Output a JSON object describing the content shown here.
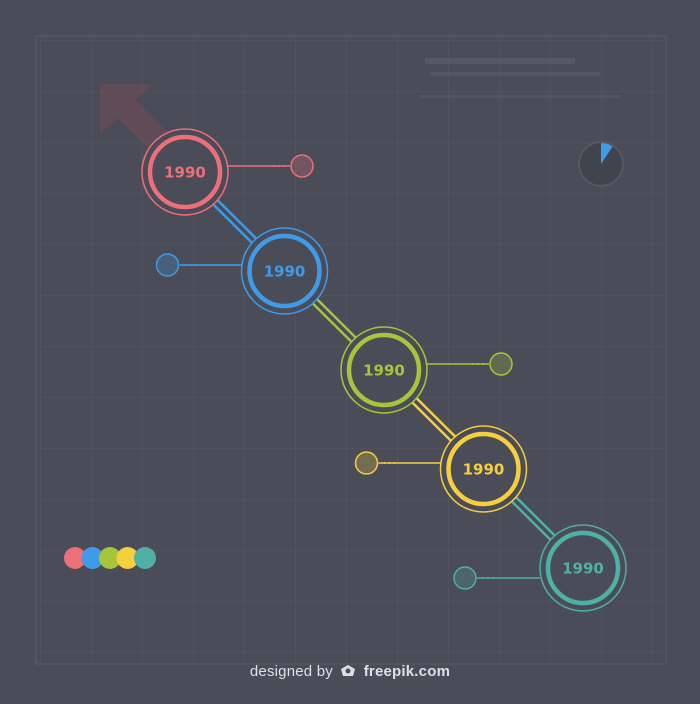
{
  "timeline": {
    "milestones": [
      {
        "year": "1990",
        "color": "#ec6f7a",
        "side": "right"
      },
      {
        "year": "1990",
        "color": "#3f9be8",
        "side": "left"
      },
      {
        "year": "1990",
        "color": "#a7c53a",
        "side": "right"
      },
      {
        "year": "1990",
        "color": "#f6cf3f",
        "side": "left"
      },
      {
        "year": "1990",
        "color": "#4fb1a6",
        "side": "left"
      }
    ]
  },
  "palette": [
    "#ec6f7a",
    "#3f9be8",
    "#a7c53a",
    "#f6cf3f",
    "#4fb1a6"
  ],
  "icons": [
    "arrow-up-left-icon",
    "pie-chart-icon",
    "freepik-logo-icon"
  ],
  "footer": {
    "prefix": "designed by",
    "brand": "freepik.com"
  }
}
